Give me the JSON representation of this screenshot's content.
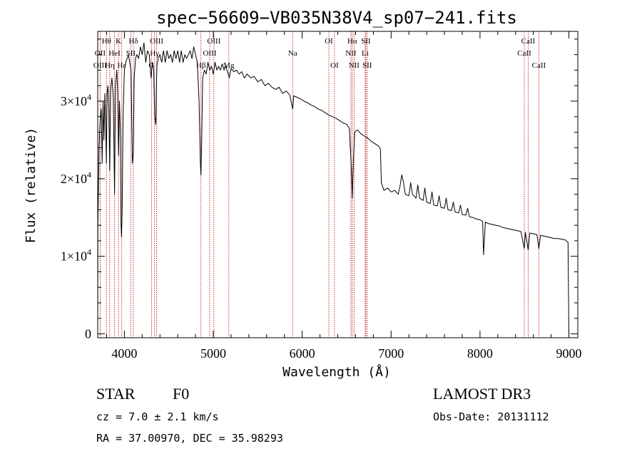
{
  "chart_data": {
    "type": "line",
    "title": "spec−56609−VB035N38V4_sp07−241.fits",
    "xlabel": "Wavelength (Å)",
    "ylabel": "Flux (relative)",
    "xlim": [
      3700,
      9100
    ],
    "ylim": [
      -500,
      39000
    ],
    "x_ticks": [
      {
        "value": 4000,
        "label": "4000"
      },
      {
        "value": 5000,
        "label": "5000"
      },
      {
        "value": 6000,
        "label": "6000"
      },
      {
        "value": 7000,
        "label": "7000"
      },
      {
        "value": 8000,
        "label": "8000"
      },
      {
        "value": 9000,
        "label": "9000"
      }
    ],
    "y_ticks": [
      {
        "value": 0,
        "mantissa": "0",
        "exponent": ""
      },
      {
        "value": 10000,
        "mantissa": "1×10",
        "exponent": "4"
      },
      {
        "value": 20000,
        "mantissa": "2×10",
        "exponent": "4"
      },
      {
        "value": 30000,
        "mantissa": "3×10",
        "exponent": "4"
      }
    ],
    "series": [
      {
        "name": "spectrum",
        "points": [
          [
            3700,
            0
          ],
          [
            3702,
            14000
          ],
          [
            3715,
            24000
          ],
          [
            3725,
            27000
          ],
          [
            3740,
            29000
          ],
          [
            3750,
            22000
          ],
          [
            3760,
            30000
          ],
          [
            3770,
            25000
          ],
          [
            3780,
            31000
          ],
          [
            3790,
            27000
          ],
          [
            3797,
            22000
          ],
          [
            3805,
            31000
          ],
          [
            3815,
            32000
          ],
          [
            3825,
            29000
          ],
          [
            3835,
            21000
          ],
          [
            3845,
            31500
          ],
          [
            3860,
            33000
          ],
          [
            3875,
            30500
          ],
          [
            3889,
            18000
          ],
          [
            3900,
            32000
          ],
          [
            3915,
            34000
          ],
          [
            3925,
            31000
          ],
          [
            3934,
            23000
          ],
          [
            3945,
            30000
          ],
          [
            3955,
            26000
          ],
          [
            3962,
            14000
          ],
          [
            3968,
            12500
          ],
          [
            3975,
            16000
          ],
          [
            3985,
            28000
          ],
          [
            4000,
            34000
          ],
          [
            4015,
            35000
          ],
          [
            4030,
            35500
          ],
          [
            4045,
            36000
          ],
          [
            4060,
            35000
          ],
          [
            4075,
            34000
          ],
          [
            4090,
            22000
          ],
          [
            4101,
            23500
          ],
          [
            4110,
            33000
          ],
          [
            4125,
            35500
          ],
          [
            4140,
            36000
          ],
          [
            4160,
            35500
          ],
          [
            4180,
            37000
          ],
          [
            4200,
            36000
          ],
          [
            4220,
            37500
          ],
          [
            4240,
            35000
          ],
          [
            4260,
            36500
          ],
          [
            4280,
            36000
          ],
          [
            4300,
            33000
          ],
          [
            4315,
            35000
          ],
          [
            4330,
            34000
          ],
          [
            4340,
            28000
          ],
          [
            4352,
            27000
          ],
          [
            4365,
            34500
          ],
          [
            4380,
            35500
          ],
          [
            4400,
            36000
          ],
          [
            4420,
            35000
          ],
          [
            4440,
            36500
          ],
          [
            4460,
            35000
          ],
          [
            4480,
            36500
          ],
          [
            4500,
            35500
          ],
          [
            4520,
            36000
          ],
          [
            4540,
            35000
          ],
          [
            4560,
            36500
          ],
          [
            4580,
            35500
          ],
          [
            4600,
            36500
          ],
          [
            4620,
            35000
          ],
          [
            4640,
            36500
          ],
          [
            4660,
            35000
          ],
          [
            4680,
            36000
          ],
          [
            4700,
            35500
          ],
          [
            4720,
            36000
          ],
          [
            4740,
            36500
          ],
          [
            4760,
            35500
          ],
          [
            4780,
            37000
          ],
          [
            4800,
            36000
          ],
          [
            4820,
            35000
          ],
          [
            4840,
            30000
          ],
          [
            4855,
            22000
          ],
          [
            4861,
            20500
          ],
          [
            4868,
            24000
          ],
          [
            4880,
            33000
          ],
          [
            4900,
            34000
          ],
          [
            4920,
            33500
          ],
          [
            4940,
            35000
          ],
          [
            4960,
            34000
          ],
          [
            4980,
            34500
          ],
          [
            5000,
            33500
          ],
          [
            5020,
            35000
          ],
          [
            5040,
            34000
          ],
          [
            5060,
            34500
          ],
          [
            5080,
            34000
          ],
          [
            5100,
            34800
          ],
          [
            5120,
            34000
          ],
          [
            5140,
            34500
          ],
          [
            5160,
            33800
          ],
          [
            5180,
            33000
          ],
          [
            5200,
            34200
          ],
          [
            5230,
            33800
          ],
          [
            5260,
            34000
          ],
          [
            5290,
            33500
          ],
          [
            5320,
            33800
          ],
          [
            5350,
            33000
          ],
          [
            5380,
            33500
          ],
          [
            5420,
            33000
          ],
          [
            5460,
            33200
          ],
          [
            5500,
            32500
          ],
          [
            5540,
            32800
          ],
          [
            5580,
            32000
          ],
          [
            5620,
            32300
          ],
          [
            5660,
            31800
          ],
          [
            5700,
            31500
          ],
          [
            5740,
            31800
          ],
          [
            5780,
            31000
          ],
          [
            5820,
            31300
          ],
          [
            5860,
            30800
          ],
          [
            5893,
            29000
          ],
          [
            5905,
            30700
          ],
          [
            5940,
            30500
          ],
          [
            5980,
            30300
          ],
          [
            6020,
            30000
          ],
          [
            6060,
            29800
          ],
          [
            6100,
            29500
          ],
          [
            6140,
            29300
          ],
          [
            6180,
            29000
          ],
          [
            6220,
            28800
          ],
          [
            6260,
            28500
          ],
          [
            6300,
            28200
          ],
          [
            6340,
            28000
          ],
          [
            6380,
            27800
          ],
          [
            6420,
            27500
          ],
          [
            6460,
            27200
          ],
          [
            6500,
            27000
          ],
          [
            6530,
            26500
          ],
          [
            6550,
            22000
          ],
          [
            6563,
            17500
          ],
          [
            6575,
            22000
          ],
          [
            6590,
            26000
          ],
          [
            6620,
            26300
          ],
          [
            6660,
            25800
          ],
          [
            6700,
            25500
          ],
          [
            6740,
            25200
          ],
          [
            6780,
            24800
          ],
          [
            6820,
            24500
          ],
          [
            6860,
            24200
          ],
          [
            6880,
            23800
          ],
          [
            6890,
            19500
          ],
          [
            6920,
            18500
          ],
          [
            6960,
            18800
          ],
          [
            7000,
            18300
          ],
          [
            7040,
            18500
          ],
          [
            7080,
            18000
          ],
          [
            7100,
            19000
          ],
          [
            7120,
            20500
          ],
          [
            7140,
            19500
          ],
          [
            7160,
            18000
          ],
          [
            7200,
            17800
          ],
          [
            7220,
            19500
          ],
          [
            7240,
            18000
          ],
          [
            7280,
            17500
          ],
          [
            7300,
            19200
          ],
          [
            7320,
            17500
          ],
          [
            7360,
            17200
          ],
          [
            7380,
            18800
          ],
          [
            7400,
            17000
          ],
          [
            7440,
            16800
          ],
          [
            7460,
            18300
          ],
          [
            7480,
            16600
          ],
          [
            7520,
            16500
          ],
          [
            7540,
            17800
          ],
          [
            7560,
            16300
          ],
          [
            7600,
            16200
          ],
          [
            7620,
            17500
          ],
          [
            7640,
            16000
          ],
          [
            7680,
            15900
          ],
          [
            7700,
            17000
          ],
          [
            7720,
            15700
          ],
          [
            7760,
            15600
          ],
          [
            7780,
            16600
          ],
          [
            7800,
            15400
          ],
          [
            7840,
            15300
          ],
          [
            7860,
            16200
          ],
          [
            7880,
            15100
          ],
          [
            7920,
            15000
          ],
          [
            7960,
            14800
          ],
          [
            8000,
            14700
          ],
          [
            8030,
            14500
          ],
          [
            8040,
            10200
          ],
          [
            8060,
            14400
          ],
          [
            8100,
            14200
          ],
          [
            8140,
            14100
          ],
          [
            8180,
            14000
          ],
          [
            8220,
            13900
          ],
          [
            8260,
            13700
          ],
          [
            8300,
            13600
          ],
          [
            8340,
            13500
          ],
          [
            8380,
            13400
          ],
          [
            8420,
            13300
          ],
          [
            8460,
            13200
          ],
          [
            8498,
            11000
          ],
          [
            8510,
            13100
          ],
          [
            8542,
            10800
          ],
          [
            8560,
            13000
          ],
          [
            8600,
            12900
          ],
          [
            8640,
            12800
          ],
          [
            8662,
            11000
          ],
          [
            8680,
            12700
          ],
          [
            8720,
            12600
          ],
          [
            8760,
            12500
          ],
          [
            8800,
            12400
          ],
          [
            8840,
            12300
          ],
          [
            8880,
            12300
          ],
          [
            8920,
            12200
          ],
          [
            8960,
            12100
          ],
          [
            8990,
            11800
          ],
          [
            9000,
            0
          ]
        ]
      }
    ],
    "line_markers": [
      {
        "label": "Hθ",
        "wavelength": 3798,
        "row": 1
      },
      {
        "label": "OII",
        "wavelength": 3727,
        "row": 2
      },
      {
        "label": "OIII",
        "wavelength": 3727,
        "row": 3
      },
      {
        "label": "Hη",
        "wavelength": 3835,
        "row": 3
      },
      {
        "label": "K",
        "wavelength": 3934,
        "row": 1
      },
      {
        "label": "HeI",
        "wavelength": 3889,
        "row": 2
      },
      {
        "label": "Hε",
        "wavelength": 3970,
        "row": 3
      },
      {
        "label": "Hδ",
        "wavelength": 4101,
        "row": 1
      },
      {
        "label": "SII",
        "wavelength": 4072,
        "row": 2
      },
      {
        "label": "OIII",
        "wavelength": 4363,
        "row": 1
      },
      {
        "label": "Hγ",
        "wavelength": 4340,
        "row": 2
      },
      {
        "label": "G",
        "wavelength": 4305,
        "row": 3
      },
      {
        "label": "OIII",
        "wavelength": 5007,
        "row": 1
      },
      {
        "label": "OIII",
        "wavelength": 4959,
        "row": 2
      },
      {
        "label": "Hβ",
        "wavelength": 4861,
        "row": 3
      },
      {
        "label": "Mg",
        "wavelength": 5175,
        "row": 3
      },
      {
        "label": "Na",
        "wavelength": 5893,
        "row": 2
      },
      {
        "label": "OI",
        "wavelength": 6300,
        "row": 1
      },
      {
        "label": "OI",
        "wavelength": 6363,
        "row": 3
      },
      {
        "label": "Hα",
        "wavelength": 6563,
        "row": 1
      },
      {
        "label": "SII",
        "wavelength": 6716,
        "row": 1
      },
      {
        "label": "NII",
        "wavelength": 6548,
        "row": 2
      },
      {
        "label": "Li",
        "wavelength": 6708,
        "row": 2
      },
      {
        "label": "NII",
        "wavelength": 6583,
        "row": 3
      },
      {
        "label": "SII",
        "wavelength": 6731,
        "row": 3
      },
      {
        "label": "CaII",
        "wavelength": 8542,
        "row": 1
      },
      {
        "label": "CaII",
        "wavelength": 8498,
        "row": 2
      },
      {
        "label": "CaII",
        "wavelength": 8662,
        "row": 3
      }
    ]
  },
  "info": {
    "class_label": "STAR",
    "subclass": "F0",
    "redshift": "cz =  7.0 ± 2.1 km/s",
    "coords": "RA =  37.00970, DEC =  35.98293",
    "survey": "LAMOST DR3",
    "obs_date": "Obs-Date: 20131112"
  },
  "colors": {
    "marker_line": "#c00000",
    "axes": "#000000",
    "spectrum": "#000000"
  }
}
